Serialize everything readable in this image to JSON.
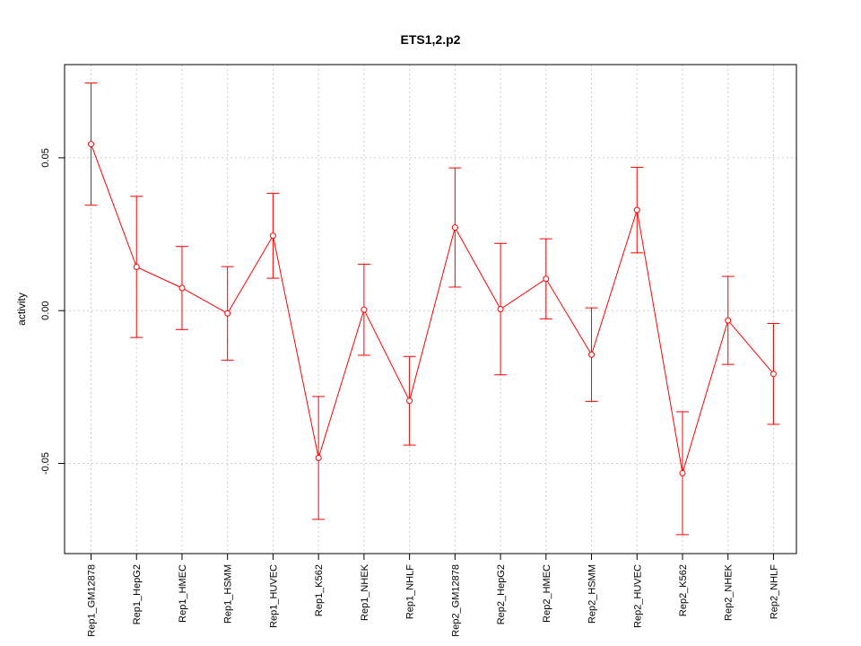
{
  "chart_data": {
    "type": "line",
    "title": "ETS1,2.p2",
    "xlabel": "",
    "ylabel": "activity",
    "categories": [
      "Rep1_GM12878",
      "Rep1_HepG2",
      "Rep1_HMEC",
      "Rep1_HSMM",
      "Rep1_HUVEC",
      "Rep1_K562",
      "Rep1_NHEK",
      "Rep1_NHLF",
      "Rep2_GM12878",
      "Rep2_HepG2",
      "Rep2_HMEC",
      "Rep2_HSMM",
      "Rep2_HUVEC",
      "Rep2_K562",
      "Rep2_NHEK",
      "Rep2_NHLF"
    ],
    "series": [
      {
        "values": [
          0.0545,
          0.0143,
          0.0074,
          -0.0009,
          0.0245,
          -0.0482,
          0.0003,
          -0.0295,
          0.0272,
          0.0005,
          0.0104,
          -0.0144,
          0.0329,
          -0.0532,
          -0.0032,
          -0.0207
        ],
        "lower": [
          0.0345,
          -0.0088,
          -0.0062,
          -0.0162,
          0.0106,
          -0.0683,
          -0.0146,
          -0.044,
          0.0077,
          -0.021,
          -0.0027,
          -0.0297,
          0.0189,
          -0.0733,
          -0.0176,
          -0.0372
        ],
        "upper": [
          0.0745,
          0.0374,
          0.021,
          0.0144,
          0.0384,
          -0.0281,
          0.0152,
          -0.015,
          0.0467,
          0.022,
          0.0235,
          0.0009,
          0.0469,
          -0.0331,
          0.0112,
          -0.0042
        ],
        "color": "#ff0000"
      }
    ],
    "yticks": [
      -0.05,
      0.0,
      0.05
    ],
    "ytick_labels": [
      "-0.05",
      "0.00",
      "0.05"
    ],
    "ylim": [
      -0.0795,
      0.0805
    ],
    "grid": true,
    "grid_color": "#cccccc",
    "axis_color": "#000000"
  }
}
